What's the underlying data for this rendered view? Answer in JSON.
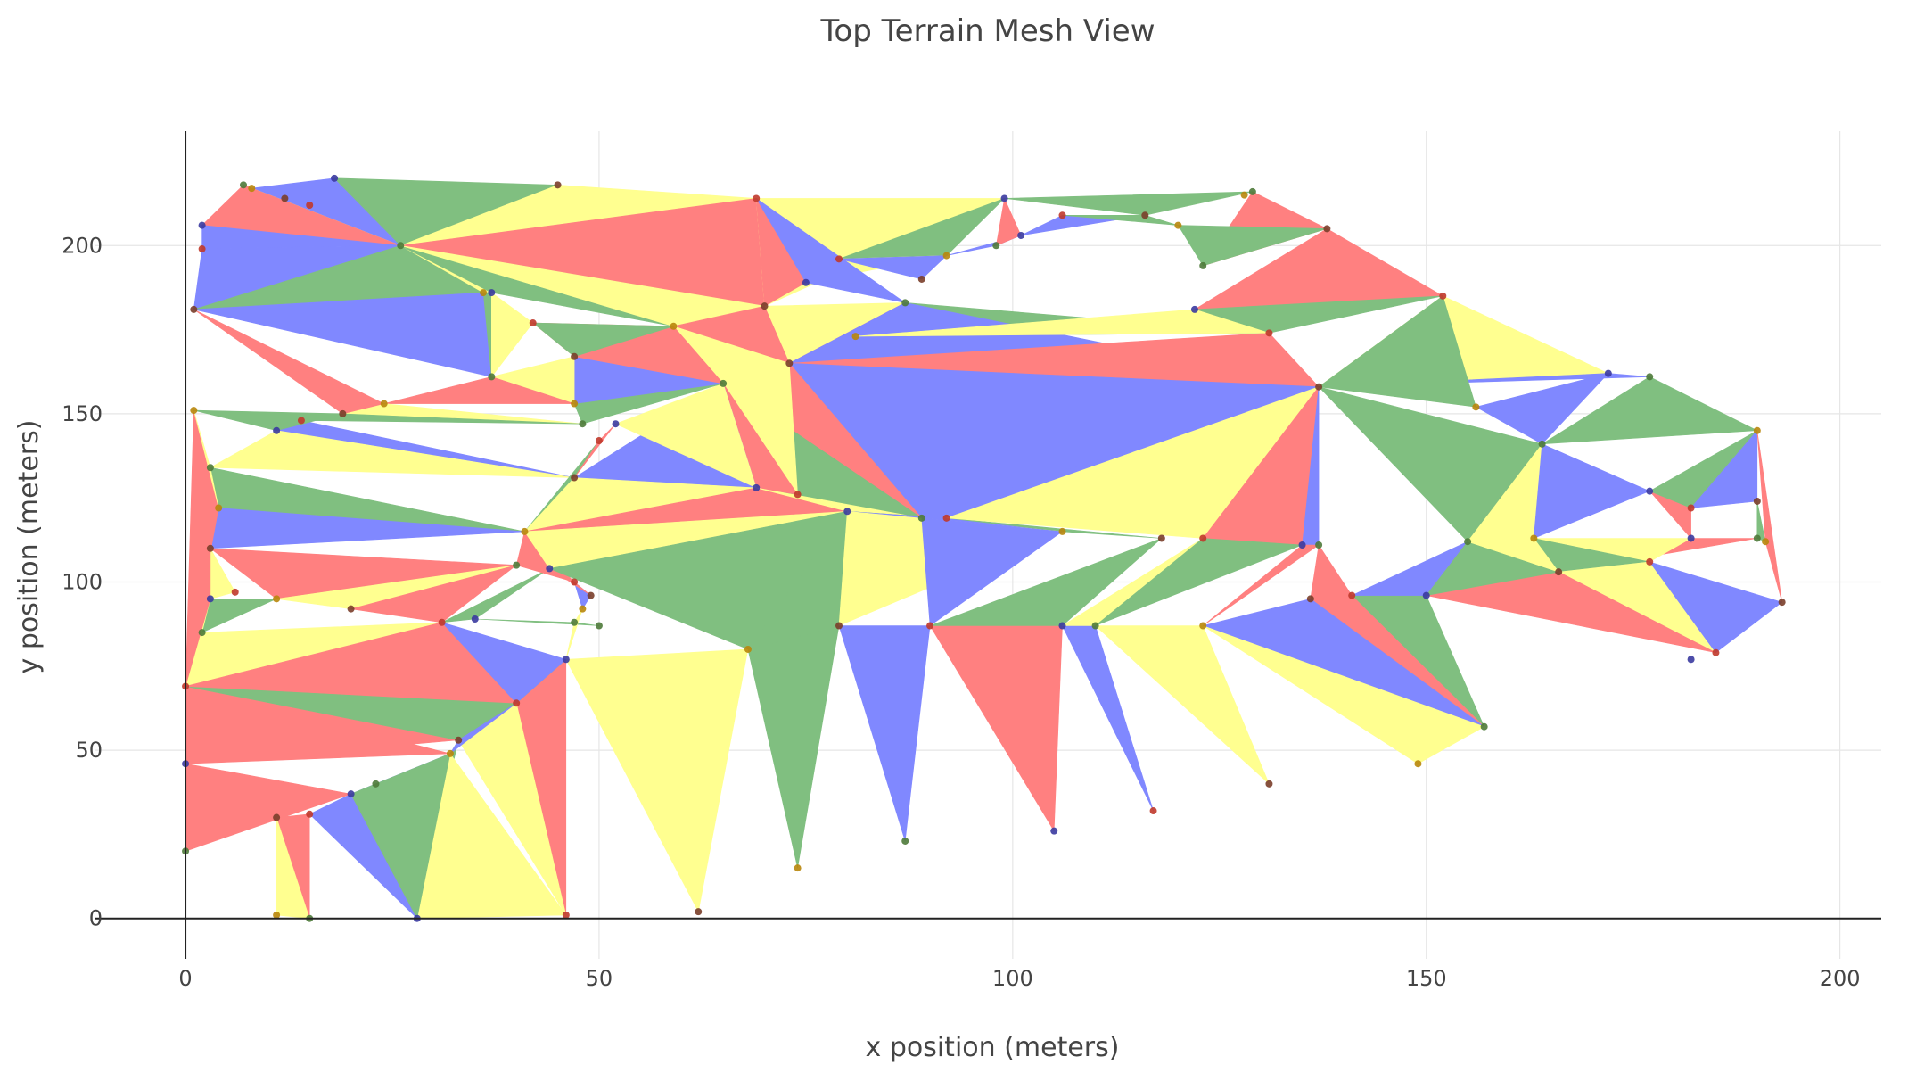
{
  "chart_data": {
    "type": "mesh",
    "title": "Top Terrain Mesh View",
    "xlabel": "x position (meters)",
    "ylabel": "y position (meters)",
    "xlim": [
      -11,
      205
    ],
    "ylim": [
      -12,
      234
    ],
    "x_ticks": [
      0,
      50,
      100,
      150,
      200
    ],
    "y_ticks": [
      0,
      50,
      100,
      150,
      200
    ],
    "grid": true,
    "legend": "none",
    "face_colors": [
      "#ff8080",
      "#8088ff",
      "#80bf80",
      "#ffff90"
    ],
    "vertices": [
      [
        0,
        69
      ],
      [
        0,
        46
      ],
      [
        0,
        20
      ],
      [
        1,
        151
      ],
      [
        1,
        181
      ],
      [
        2,
        199
      ],
      [
        2,
        206
      ],
      [
        7,
        218
      ],
      [
        8,
        217
      ],
      [
        12,
        214
      ],
      [
        15,
        212
      ],
      [
        18,
        220
      ],
      [
        26,
        200
      ],
      [
        36,
        186
      ],
      [
        45,
        218
      ],
      [
        69,
        214
      ],
      [
        99,
        214
      ],
      [
        129,
        216
      ],
      [
        128,
        215
      ],
      [
        138,
        205
      ],
      [
        152,
        185
      ],
      [
        172,
        162
      ],
      [
        177,
        161
      ],
      [
        190,
        145
      ],
      [
        193,
        94
      ],
      [
        185,
        79
      ],
      [
        182,
        77
      ],
      [
        157,
        57
      ],
      [
        149,
        46
      ],
      [
        131,
        40
      ],
      [
        117,
        32
      ],
      [
        105,
        26
      ],
      [
        87,
        23
      ],
      [
        74,
        15
      ],
      [
        62,
        2
      ],
      [
        46,
        1
      ],
      [
        28,
        0
      ],
      [
        15,
        0
      ],
      [
        11,
        1
      ],
      [
        11,
        30
      ],
      [
        15,
        31
      ],
      [
        20,
        37
      ],
      [
        23,
        40
      ],
      [
        32,
        49
      ],
      [
        33,
        53
      ],
      [
        40,
        64
      ],
      [
        46,
        77
      ],
      [
        50,
        87
      ],
      [
        48,
        92
      ],
      [
        49,
        96
      ],
      [
        47,
        100
      ],
      [
        44,
        104
      ],
      [
        40,
        105
      ],
      [
        41,
        115
      ],
      [
        47,
        131
      ],
      [
        50,
        142
      ],
      [
        52,
        147
      ],
      [
        48,
        147
      ],
      [
        47,
        153
      ],
      [
        47,
        167
      ],
      [
        42,
        177
      ],
      [
        37,
        186
      ],
      [
        37,
        161
      ],
      [
        24,
        153
      ],
      [
        19,
        150
      ],
      [
        14,
        148
      ],
      [
        11,
        145
      ],
      [
        3,
        134
      ],
      [
        4,
        122
      ],
      [
        3,
        110
      ],
      [
        6,
        97
      ],
      [
        3,
        95
      ],
      [
        2,
        85
      ],
      [
        11,
        95
      ],
      [
        20,
        92
      ],
      [
        31,
        88
      ],
      [
        35,
        89
      ],
      [
        47,
        88
      ],
      [
        68,
        80
      ],
      [
        79,
        87
      ],
      [
        90,
        87
      ],
      [
        106,
        87
      ],
      [
        110,
        87
      ],
      [
        123,
        87
      ],
      [
        136,
        95
      ],
      [
        141,
        96
      ],
      [
        150,
        96
      ],
      [
        155,
        112
      ],
      [
        163,
        113
      ],
      [
        166,
        103
      ],
      [
        177,
        106
      ],
      [
        182,
        113
      ],
      [
        190,
        113
      ],
      [
        191,
        112
      ],
      [
        190,
        124
      ],
      [
        182,
        122
      ],
      [
        177,
        127
      ],
      [
        164,
        141
      ],
      [
        156,
        152
      ],
      [
        137,
        158
      ],
      [
        131,
        174
      ],
      [
        122,
        181
      ],
      [
        123,
        194
      ],
      [
        120,
        206
      ],
      [
        116,
        209
      ],
      [
        106,
        209
      ],
      [
        101,
        203
      ],
      [
        98,
        200
      ],
      [
        92,
        197
      ],
      [
        89,
        190
      ],
      [
        79,
        196
      ],
      [
        75,
        189
      ],
      [
        87,
        183
      ],
      [
        81,
        173
      ],
      [
        73,
        165
      ],
      [
        74,
        126
      ],
      [
        69,
        128
      ],
      [
        65,
        159
      ],
      [
        59,
        176
      ],
      [
        70,
        182
      ],
      [
        92,
        119
      ],
      [
        80,
        121
      ],
      [
        89,
        119
      ],
      [
        106,
        115
      ],
      [
        118,
        113
      ],
      [
        123,
        113
      ],
      [
        135,
        111
      ],
      [
        137,
        111
      ]
    ],
    "triangles": [
      [
        8,
        11,
        12,
        1
      ],
      [
        11,
        14,
        12,
        2
      ],
      [
        14,
        15,
        12,
        3
      ],
      [
        15,
        119,
        12,
        0
      ],
      [
        7,
        8,
        12,
        3
      ],
      [
        6,
        7,
        12,
        0
      ],
      [
        5,
        6,
        12,
        1
      ],
      [
        4,
        5,
        12,
        1
      ],
      [
        4,
        12,
        13,
        2
      ],
      [
        4,
        13,
        62,
        1
      ],
      [
        12,
        13,
        61,
        3
      ],
      [
        13,
        61,
        62,
        2
      ],
      [
        61,
        60,
        62,
        3
      ],
      [
        60,
        118,
        59,
        0
      ],
      [
        12,
        61,
        118,
        2
      ],
      [
        12,
        118,
        119,
        3
      ],
      [
        15,
        16,
        119,
        3
      ],
      [
        16,
        108,
        110,
        2
      ],
      [
        108,
        110,
        111,
        3
      ],
      [
        108,
        109,
        110,
        1
      ],
      [
        15,
        111,
        119,
        0
      ],
      [
        15,
        111,
        112,
        1
      ],
      [
        119,
        112,
        114,
        3
      ],
      [
        16,
        17,
        104,
        2
      ],
      [
        17,
        19,
        102,
        0
      ],
      [
        104,
        105,
        106,
        1
      ],
      [
        103,
        104,
        105,
        2
      ],
      [
        106,
        107,
        108,
        1
      ],
      [
        102,
        19,
        103,
        2
      ],
      [
        16,
        106,
        107,
        0
      ],
      [
        19,
        20,
        101,
        0
      ],
      [
        100,
        101,
        20,
        2
      ],
      [
        20,
        21,
        99,
        3
      ],
      [
        21,
        22,
        99,
        1
      ],
      [
        22,
        23,
        97,
        2
      ],
      [
        98,
        97,
        21,
        1
      ],
      [
        99,
        20,
        98,
        2
      ],
      [
        112,
        113,
        114,
        0
      ],
      [
        112,
        113,
        100,
        2
      ],
      [
        112,
        114,
        99,
        1
      ],
      [
        114,
        99,
        100,
        0
      ],
      [
        113,
        100,
        101,
        3
      ],
      [
        114,
        122,
        99,
        1
      ],
      [
        114,
        115,
        122,
        0
      ],
      [
        115,
        116,
        122,
        3
      ],
      [
        118,
        117,
        115,
        2
      ],
      [
        116,
        117,
        122,
        2
      ],
      [
        118,
        119,
        114,
        0
      ],
      [
        114,
        118,
        115,
        3
      ],
      [
        117,
        115,
        116,
        0
      ],
      [
        116,
        117,
        54,
        1
      ],
      [
        117,
        56,
        116,
        3
      ],
      [
        57,
        58,
        117,
        2
      ],
      [
        58,
        59,
        117,
        1
      ],
      [
        59,
        117,
        118,
        0
      ],
      [
        60,
        59,
        118,
        2
      ],
      [
        62,
        58,
        59,
        3
      ],
      [
        62,
        63,
        58,
        0
      ],
      [
        63,
        64,
        57,
        3
      ],
      [
        64,
        65,
        57,
        2
      ],
      [
        65,
        66,
        54,
        1
      ],
      [
        66,
        67,
        54,
        3
      ],
      [
        67,
        68,
        53,
        2
      ],
      [
        68,
        69,
        53,
        1
      ],
      [
        54,
        53,
        55,
        2
      ],
      [
        55,
        56,
        54,
        0
      ],
      [
        53,
        116,
        54,
        3
      ],
      [
        53,
        116,
        121,
        0
      ],
      [
        116,
        121,
        122,
        3
      ],
      [
        121,
        122,
        120,
        2
      ],
      [
        121,
        123,
        120,
        1
      ],
      [
        120,
        123,
        124,
        2
      ],
      [
        122,
        120,
        99,
        1
      ],
      [
        120,
        99,
        125,
        3
      ],
      [
        99,
        126,
        125,
        0
      ],
      [
        99,
        127,
        126,
        1
      ],
      [
        99,
        97,
        87,
        2
      ],
      [
        87,
        97,
        88,
        3
      ],
      [
        88,
        97,
        96,
        1
      ],
      [
        96,
        95,
        91,
        0
      ],
      [
        95,
        96,
        23,
        2
      ],
      [
        95,
        94,
        23,
        1
      ],
      [
        94,
        92,
        93,
        2
      ],
      [
        93,
        23,
        24,
        0
      ],
      [
        92,
        91,
        89,
        0
      ],
      [
        91,
        90,
        88,
        3
      ],
      [
        88,
        89,
        90,
        2
      ],
      [
        89,
        90,
        25,
        3
      ],
      [
        90,
        25,
        24,
        1
      ],
      [
        89,
        86,
        25,
        0
      ],
      [
        86,
        85,
        27,
        2
      ],
      [
        85,
        84,
        27,
        0
      ],
      [
        84,
        83,
        27,
        1
      ],
      [
        83,
        28,
        27,
        3
      ],
      [
        83,
        82,
        29,
        3
      ],
      [
        82,
        81,
        30,
        1
      ],
      [
        81,
        80,
        31,
        0
      ],
      [
        80,
        79,
        32,
        1
      ],
      [
        79,
        78,
        33,
        2
      ],
      [
        78,
        46,
        34,
        3
      ],
      [
        46,
        45,
        35,
        0
      ],
      [
        45,
        44,
        35,
        3
      ],
      [
        44,
        43,
        36,
        2
      ],
      [
        43,
        42,
        41,
        1
      ],
      [
        41,
        40,
        36,
        1
      ],
      [
        40,
        39,
        37,
        0
      ],
      [
        39,
        38,
        37,
        3
      ],
      [
        2,
        1,
        41,
        0
      ],
      [
        1,
        0,
        43,
        0
      ],
      [
        0,
        72,
        75,
        3
      ],
      [
        72,
        71,
        73,
        2
      ],
      [
        71,
        70,
        69,
        3
      ],
      [
        69,
        73,
        52,
        0
      ],
      [
        73,
        74,
        52,
        3
      ],
      [
        74,
        75,
        52,
        0
      ],
      [
        75,
        76,
        51,
        2
      ],
      [
        76,
        77,
        47,
        2
      ],
      [
        77,
        46,
        48,
        3
      ],
      [
        48,
        49,
        50,
        1
      ],
      [
        50,
        51,
        49,
        0
      ],
      [
        52,
        53,
        50,
        0
      ],
      [
        53,
        51,
        121,
        3
      ],
      [
        51,
        78,
        121,
        2
      ],
      [
        78,
        79,
        121,
        2
      ],
      [
        79,
        121,
        123,
        3
      ],
      [
        123,
        122,
        80,
        1
      ],
      [
        80,
        124,
        81,
        2
      ],
      [
        81,
        125,
        82,
        3
      ],
      [
        82,
        125,
        126,
        2
      ],
      [
        126,
        83,
        127,
        0
      ],
      [
        127,
        84,
        85,
        0
      ],
      [
        85,
        86,
        87,
        1
      ],
      [
        86,
        87,
        89,
        2
      ],
      [
        87,
        88,
        89,
        3
      ],
      [
        3,
        0,
        68,
        0
      ],
      [
        3,
        67,
        68,
        3
      ],
      [
        3,
        64,
        66,
        2
      ],
      [
        4,
        63,
        64,
        0
      ],
      [
        0,
        1,
        44,
        0
      ],
      [
        0,
        45,
        44,
        2
      ],
      [
        0,
        46,
        45,
        2
      ],
      [
        0,
        75,
        45,
        0
      ],
      [
        75,
        46,
        45,
        1
      ],
      [
        45,
        43,
        44,
        1
      ],
      [
        43,
        36,
        35,
        3
      ],
      [
        41,
        43,
        36,
        2
      ],
      [
        0,
        72,
        71,
        3
      ],
      [
        0,
        71,
        69,
        0
      ]
    ]
  }
}
